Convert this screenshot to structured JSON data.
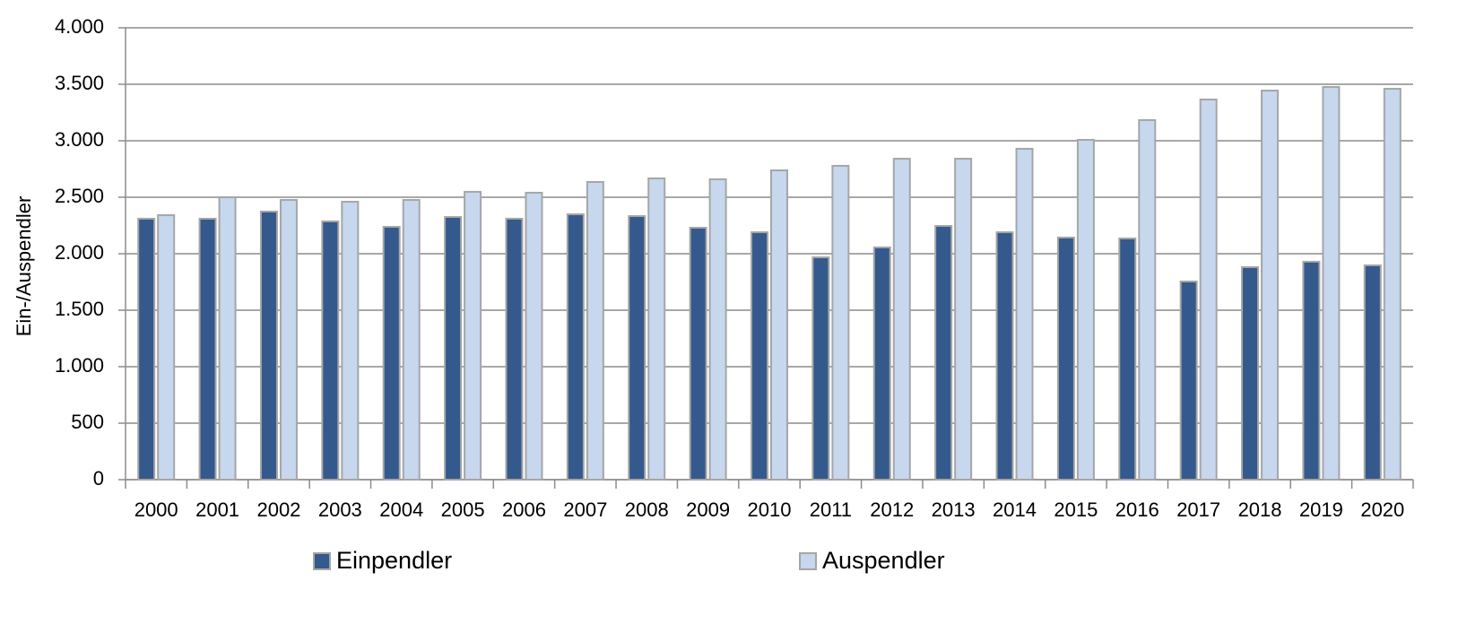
{
  "chart_data": {
    "type": "bar",
    "y_label": "Ein-/Auspendler",
    "categories": [
      "2000",
      "2001",
      "2002",
      "2003",
      "2004",
      "2005",
      "2006",
      "2007",
      "2008",
      "2009",
      "2010",
      "2011",
      "2012",
      "2013",
      "2014",
      "2015",
      "2016",
      "2017",
      "2018",
      "2019",
      "2020"
    ],
    "series": [
      {
        "name": "Einpendler",
        "color": "#34598c",
        "values": [
          2310,
          2310,
          2373,
          2286,
          2238,
          2325,
          2310,
          2349,
          2333,
          2230,
          2190,
          1968,
          2056,
          2246,
          2190,
          2143,
          2135,
          1754,
          1881,
          1929,
          1897
        ]
      },
      {
        "name": "Auspendler",
        "color": "#c6d7ee",
        "values": [
          2341,
          2500,
          2476,
          2460,
          2476,
          2548,
          2540,
          2635,
          2667,
          2659,
          2738,
          2778,
          2841,
          2841,
          2929,
          3008,
          3183,
          3365,
          3444,
          3476,
          3460
        ]
      }
    ],
    "ylim": [
      0,
      4000
    ],
    "yticks": [
      0,
      500,
      {
        "value": 1000,
        "label": "1.000"
      },
      {
        "value": 1500,
        "label": "1.500"
      },
      {
        "value": 2000,
        "label": "2.000"
      },
      {
        "value": 2500,
        "label": "2.500"
      },
      {
        "value": 3000,
        "label": "3.000"
      },
      {
        "value": 3500,
        "label": "3.500"
      },
      {
        "value": 4000,
        "label": "4.000"
      }
    ],
    "grid": true
  }
}
